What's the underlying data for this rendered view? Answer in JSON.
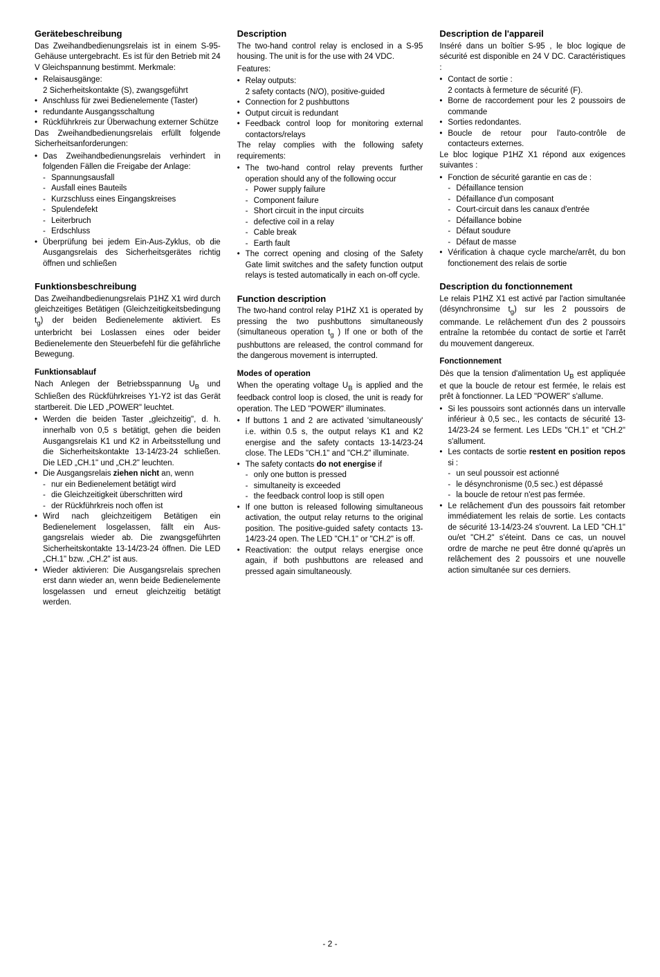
{
  "pageNumber": "- 2 -",
  "de": {
    "s1": {
      "title": "Gerätebeschreibung",
      "intro": "Das Zweihandbedienungsrelais ist in einem S-95-Gehäuse untergebracht. Es ist für den Betrieb mit 24 V Gleichspannung bestimmt. Merkmale:",
      "b1": "Relaisausgänge:",
      "b1sub": "2 Sicherheitskontakte (S), zwangsgeführt",
      "b2": "Anschluss für zwei Bedienelemente (Taster)",
      "b3": "redundante Ausgangsschaltung",
      "b4": "Rückführkreis zur Überwachung externer Schütze",
      "mid": "Das Zweihandbedienungsrelais erfüllt folgende Sicherheitsanforderungen:",
      "b5": "Das Zweihandbedienungsrelais verhin­dert in folgenden Fällen die Freigabe der Anlage:",
      "d1": "Spannungsausfall",
      "d2": "Ausfall eines Bauteils",
      "d3": "Kurzschluss eines Eingangskreises",
      "d4": "Spulendefekt",
      "d5": "Leiterbruch",
      "d6": "Erdschluss",
      "b6": "Überprüfung bei jedem Ein-Aus-Zyklus, ob die Ausgangsrelais des Sicherheits­gerätes richtig öffnen und schließen"
    },
    "s2": {
      "title": "Funktionsbeschreibung",
      "p1a": "Das Zweihandbedienungsrelais P1HZ X1 wird durch gleichzeitiges Betätigen (Gleich­zeitigkeitsbedingung t",
      "p1b": ") der beiden Bedien­elemente aktiviert. Es unterbricht bei Loslassen eines oder beider Bedienelemente den Steuerbefehl für die gefährliche Bewegung.",
      "h3": "Funktionsablauf",
      "p2a": "Nach Anlegen der Betriebsspannung U",
      "p2b": " und Schließen des Rückführkreises Y1-Y2 ist das Gerät startbereit. Die LED „POWER\" leuchtet.",
      "b1": "Werden die beiden Taster „gleichzeitig\", d. h. innerhalb von 0,5 s betätigt, gehen die beiden Ausgangsrelais K1 und K2 in Arbeitsstellung und die Sicherheits­kontakte 13-14/23-24 schließen. Die LED „CH.1\" und „CH.2\" leuchten.",
      "b2a": "Die Ausgangsrelais ",
      "b2bold": "ziehen nicht",
      "b2b": " an, wenn",
      "d1": "nur ein Bedienelement betätigt wird",
      "d2": "die Gleichzeitigkeit überschritten wird",
      "d3": "der Rückführkreis noch offen ist",
      "b3": "Wird nach gleichzeitigem Betätigen ein Bedienelement losgelassen, fällt ein Aus­gangsrelais wieder ab. Die zwangs­geführten Sicherheitskontakte 13-14/23-24 öffnen. Die LED „CH.1\" bzw. „CH.2\" ist aus.",
      "b4": "Wieder aktivieren: Die Ausgangsrelais sprechen erst dann wieder an, wenn beide Bedienelemente losgelassen und erneut gleichzeitig betätigt werden."
    }
  },
  "en": {
    "s1": {
      "title": "Description",
      "intro": "The two-hand control relay is enclosed in a S-95 housing. The unit is for the use with 24 VDC.",
      "feat": "Features:",
      "b1": "Relay outputs:",
      "b1sub": "2 safety contacts (N/O), positive-guided",
      "b2": "Connection for 2 pushbuttons",
      "b3": "Output circuit is redundant",
      "b4": "Feedback control loop for monitoring external contactors/relays",
      "mid": "The relay complies with the following safety requirements:",
      "b5": "The two-hand control relay prevents further operation should any of the following occur",
      "d1": "Power supply failure",
      "d2": "Component failure",
      "d3": "Short circuit in the input circuits",
      "d4": "defective coil in a relay",
      "d5": "Cable break",
      "d6": "Earth fault",
      "b6": "The correct opening and closing of the Safety Gate limit switches and the safety function output relays is tested automatically in each on-off cycle."
    },
    "s2": {
      "title": "Function description",
      "p1a": "The two-hand control relay P1HZ X1 is operated by pressing the two pushbuttons simultaneously (simultaneous operation t",
      "p1b": " ) If one or both of the pushbuttons are released, the control command for the dangerous movement is interrupted.",
      "h3": "Modes of operation",
      "p2a": "When the operating voltage U",
      "p2b": " is applied and the feedback control loop is closed, the unit is ready for operation. The LED \"POWER\" illuminates.",
      "b1": "If buttons 1 and 2 are activated 'simultaneously' i.e. within 0.5 s, the output relays K1 and K2 energise and the safety contacts 13-14/23-24 close. The LEDs \"CH.1\" and \"CH.2\" illuminate.",
      "b2a": "The safety contacts ",
      "b2bold": "do not energise",
      "b2b": " if",
      "d1": "only one button is pressed",
      "d2": "simultaneity is exceeded",
      "d3": "the feedback control loop is still open",
      "b3": "If one button is released following simultaneous activation, the output relay returns to the original position.  The positive-guided safety contacts 13-14/23-24 open. The LED \"CH.1\" or \"CH.2\" is off.",
      "b4": "Reactivation: the output relays energise once again, if both pushbuttons are released and pressed again simultaneously."
    }
  },
  "fr": {
    "s1": {
      "title": "Description de l'appareil",
      "intro": "Inséré dans un boîtier S-95 , le bloc logique de sécurité est disponible en 24 V DC. Caractéristiques :",
      "b1": "Contact de sortie :",
      "b1sub": "2 contacts à fermeture de sécurité (F).",
      "b2": "Borne de raccordement pour les 2 poussoirs de commande",
      "b3": "Sorties redondantes.",
      "b4": "Boucle de retour pour l'auto-contrôle de contacteurs externes.",
      "mid": "Le bloc logique P1HZ X1 répond aux exigences suivantes :",
      "b5": "Fonction de sécurité garantie en cas de :",
      "d1": "Défaillance tension",
      "d2": "Défaillance d'un composant",
      "d3": "Court-circuit dans les canaux d'entrée",
      "d4": "Défaillance bobine",
      "d5": "Défaut soudure",
      "d6": "Défaut de masse",
      "b6": "Vérification à chaque cycle marche/arrêt, du bon fonctionement des relais de sortie"
    },
    "s2": {
      "title": "Description du fonctionnement",
      "p1a": "Le relais  P1HZ X1 est activé par l'action simultanée  (désynchronsime t",
      "p1b": ") sur les 2 poussoirs de commande. Le relâchement d'un des 2 poussoirs entraîne la retombée du contact de sortie et l'arrêt du mouvement dangereux.",
      "h3": "Fonctionnement",
      "p2a": "Dès que la tension d'alimentation U",
      "p2b": " est appliquée et que la boucle de retour est fermée, le relais est  prêt à fonctionner. La LED \"POWER\" s'allume.",
      "b1": "Si les poussoirs sont actionnés dans un intervalle  inférieur à  0,5 sec., les contacts de sécurité 13-14/23-24  se ferment. Les LEDs \"CH.1\" et \"CH.2\" s'allument.",
      "b2a": "Les contacts de sortie ",
      "b2bold": "restent en position repos",
      "b2b": " si :",
      "d1": "un seul poussoir est actionné",
      "d2": "le désynchronisme (0,5 sec.) est dépassé",
      "d3": "la boucle de retour n'est pas fermée.",
      "b3": "Le relâchement d'un des poussoirs fait retomber immédiatement les relais de sortie. Les contacts de sécurité 13-14/23-24 s'ouvrent. La LED \"CH.1\" ou/et \"CH.2\" s'éteint. Dans ce cas, un nouvel ordre de marche ne peut être donné qu'après un relâchement des 2 poussoirs et une nouvelle action simultanée sur ces derniers."
    }
  }
}
